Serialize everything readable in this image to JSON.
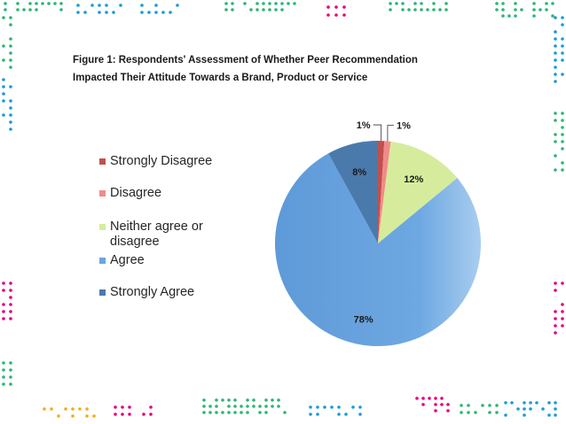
{
  "title_line1": "Figure 1: Respondents' Assessment of Whether Peer Recommendation",
  "title_line2": "Impacted Their Attitude Towards a Brand, Product or Service",
  "colors": {
    "strongly_disagree": "#c0504d",
    "disagree": "#f08a8a",
    "neither": "#d6ec9c",
    "agree": "#6aa6df",
    "strongly_agree": "#4a7aac"
  },
  "chart_data": {
    "type": "pie",
    "title": "Figure 1: Respondents' Assessment of Whether Peer Recommendation Impacted Their Attitude Towards a Brand, Product or Service",
    "legend_position": "left",
    "slices": [
      {
        "name": "Strongly Disagree",
        "value": 1,
        "label": "1%",
        "color": "#c0504d"
      },
      {
        "name": "Disagree",
        "value": 1,
        "label": "1%",
        "color": "#f08a8a"
      },
      {
        "name": "Neither agree or disagree",
        "value": 12,
        "label": "12%",
        "color": "#d6ec9c"
      },
      {
        "name": "Agree",
        "value": 78,
        "label": "78%",
        "color": "#6aa6df"
      },
      {
        "name": "Strongly Agree",
        "value": 8,
        "label": "8%",
        "color": "#4a7aac"
      }
    ]
  }
}
